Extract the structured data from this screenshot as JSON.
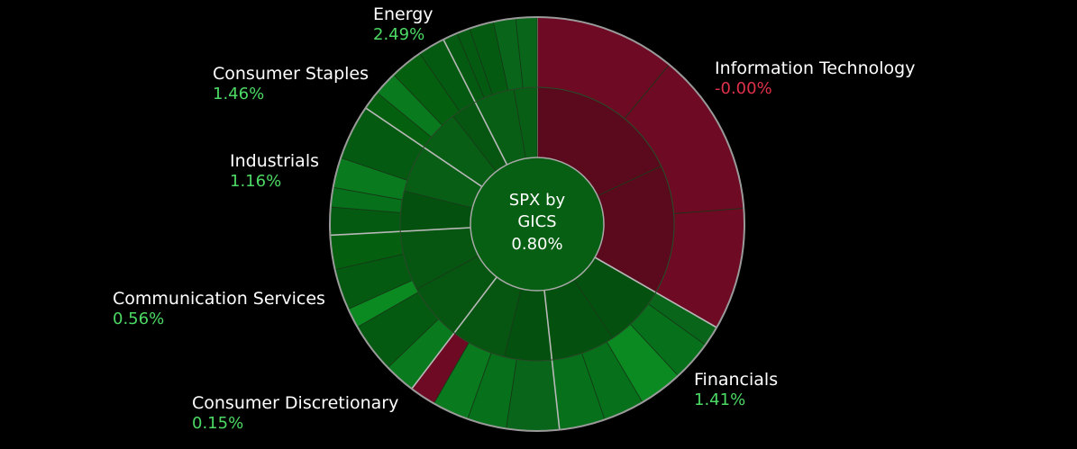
{
  "chart_data": {
    "type": "sunburst",
    "center": {
      "title_line1": "SPX by",
      "title_line2": "GICS",
      "value": "0.80%"
    },
    "sectors": [
      {
        "name": "Information Technology",
        "value": "-0.00%",
        "weight": 29.0
      },
      {
        "name": "Financials",
        "value": "1.41%",
        "weight": 13.0
      },
      {
        "name": "Consumer Discretionary",
        "value": "0.15%",
        "weight": 10.5
      },
      {
        "name": "Communication Services",
        "value": "0.56%",
        "weight": 12.0
      },
      {
        "name": "Industrials",
        "value": "1.16%",
        "weight": 9.0
      },
      {
        "name": "Consumer Staples",
        "value": "1.46%",
        "weight": 7.0
      },
      {
        "name": "Energy",
        "value": "2.49%",
        "weight": 6.5
      }
    ]
  },
  "colors": {
    "background": "#000000",
    "positive_text": "#4cd964",
    "negative_text": "#e0304a",
    "ring_border": "#9a9a9a"
  }
}
